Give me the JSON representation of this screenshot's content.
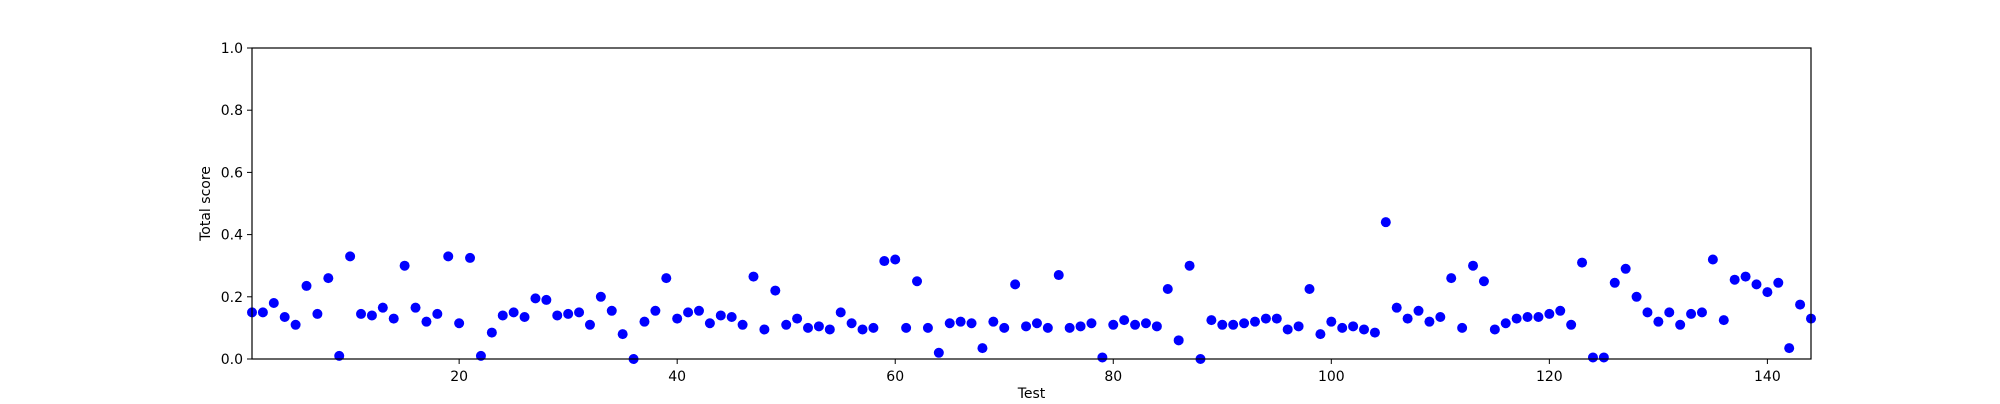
{
  "chart_data": {
    "type": "scatter",
    "title": "",
    "xlabel": "Test",
    "ylabel": "Total score",
    "xlim": [
      1,
      144
    ],
    "ylim": [
      0.0,
      1.0
    ],
    "grid": false,
    "marker_color": "#0000ff",
    "x_ticks": [
      "20",
      "40",
      "60",
      "80",
      "100",
      "120",
      "140"
    ],
    "y_ticks": [
      "0.0",
      "0.2",
      "0.4",
      "0.6",
      "0.8",
      "1.0"
    ],
    "series": [
      {
        "x": [
          1,
          2,
          3,
          4,
          5,
          6,
          7,
          8,
          9,
          10,
          11,
          12,
          13,
          14,
          15,
          16,
          17,
          18,
          19,
          20,
          21,
          22,
          23,
          24,
          25,
          26,
          27,
          28,
          29,
          30,
          31,
          32,
          33,
          34,
          35,
          36,
          37,
          38,
          39,
          40,
          41,
          42,
          43,
          44,
          45,
          46,
          47,
          48,
          49,
          50,
          51,
          52,
          53,
          54,
          55,
          56,
          57,
          58,
          59,
          60,
          61,
          62,
          63,
          64,
          65,
          66,
          67,
          68,
          69,
          70,
          71,
          72,
          73,
          74,
          75,
          76,
          77,
          78,
          79,
          80,
          81,
          82,
          83,
          84,
          85,
          86,
          87,
          88,
          89,
          90,
          91,
          92,
          93,
          94,
          95,
          96,
          97,
          98,
          99,
          100,
          101,
          102,
          103,
          104,
          105,
          106,
          107,
          108,
          109,
          110,
          111,
          112,
          113,
          114,
          115,
          116,
          117,
          118,
          119,
          120,
          121,
          122,
          123,
          124,
          125,
          126,
          127,
          128,
          129,
          130,
          131,
          132,
          133,
          134,
          135,
          136,
          137,
          138,
          139,
          140,
          141,
          142,
          143,
          144
        ],
        "y": [
          0.15,
          0.15,
          0.18,
          0.135,
          0.11,
          0.235,
          0.145,
          0.26,
          0.01,
          0.33,
          0.145,
          0.14,
          0.165,
          0.13,
          0.3,
          0.165,
          0.12,
          0.145,
          0.33,
          0.115,
          0.325,
          0.01,
          0.085,
          0.14,
          0.15,
          0.135,
          0.195,
          0.19,
          0.14,
          0.145,
          0.15,
          0.11,
          0.2,
          0.155,
          0.08,
          0.0,
          0.12,
          0.155,
          0.26,
          0.13,
          0.15,
          0.155,
          0.115,
          0.14,
          0.135,
          0.11,
          0.265,
          0.095,
          0.22,
          0.11,
          0.13,
          0.1,
          0.105,
          0.095,
          0.15,
          0.115,
          0.095,
          0.1,
          0.315,
          0.32,
          0.1,
          0.25,
          0.1,
          0.02,
          0.115,
          0.12,
          0.115,
          0.035,
          0.12,
          0.1,
          0.24,
          0.105,
          0.115,
          0.1,
          0.27,
          0.1,
          0.105,
          0.115,
          0.005,
          0.11,
          0.125,
          0.11,
          0.115,
          0.105,
          0.225,
          0.06,
          0.3,
          0.0,
          0.125,
          0.11,
          0.11,
          0.115,
          0.12,
          0.13,
          0.13,
          0.095,
          0.105,
          0.225,
          0.08,
          0.12,
          0.1,
          0.105,
          0.095,
          0.085,
          0.44,
          0.165,
          0.13,
          0.155,
          0.12,
          0.135,
          0.26,
          0.1,
          0.3,
          0.25,
          0.095,
          0.115,
          0.13,
          0.135,
          0.135,
          0.145,
          0.155,
          0.11,
          0.31,
          0.005,
          0.005,
          0.245,
          0.29,
          0.2,
          0.15,
          0.12,
          0.15,
          0.11,
          0.145,
          0.15,
          0.32,
          0.125,
          0.255,
          0.265,
          0.24,
          0.215,
          0.245,
          0.035,
          0.175,
          0.13
        ]
      }
    ]
  }
}
